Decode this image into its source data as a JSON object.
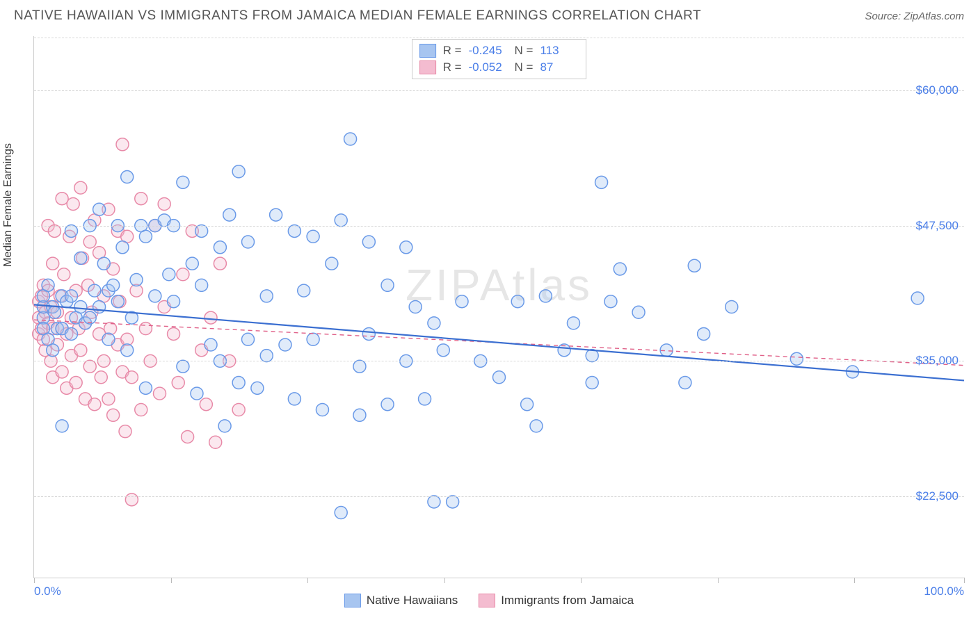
{
  "title": "NATIVE HAWAIIAN VS IMMIGRANTS FROM JAMAICA MEDIAN FEMALE EARNINGS CORRELATION CHART",
  "source_label": "Source: ZipAtlas.com",
  "watermark": "ZIPAtlas",
  "chart": {
    "type": "scatter",
    "ylabel": "Median Female Earnings",
    "xlim": [
      0,
      100
    ],
    "ylim": [
      15000,
      65000
    ],
    "xtick_labels": {
      "0": "0.0%",
      "100": "100.0%"
    },
    "xtick_positions_pct": [
      0,
      14.7,
      29.4,
      44.1,
      58.8,
      73.5,
      88.2,
      100
    ],
    "ytick_values": [
      22500,
      35000,
      47500,
      60000
    ],
    "ytick_labels": [
      "$22,500",
      "$35,000",
      "$47,500",
      "$60,000"
    ],
    "grid_color": "#d8d8d8",
    "background_color": "#ffffff",
    "point_radius": 9,
    "point_stroke_width": 1.5,
    "point_fill_opacity": 0.35,
    "trend_line_width_solid": 2.2,
    "trend_line_width_dashed": 1.4,
    "axis_label_color": "#4a7ee8",
    "axis_label_fontsize": 17,
    "series": [
      {
        "name": "Native Hawaiians",
        "color_stroke": "#6a9ae8",
        "color_fill": "#a7c5f0",
        "trend_color": "#3b6fd1",
        "trend_style": "solid",
        "trend": {
          "x1": 0,
          "y1": 40200,
          "x2": 100,
          "y2": 33200
        },
        "R": "-0.245",
        "N": "113",
        "points": [
          [
            1,
            39000
          ],
          [
            1,
            40000
          ],
          [
            1,
            38000
          ],
          [
            1,
            41000
          ],
          [
            1.5,
            37000
          ],
          [
            1.5,
            42000
          ],
          [
            2,
            40000
          ],
          [
            2,
            36000
          ],
          [
            2.2,
            39500
          ],
          [
            2.5,
            38000
          ],
          [
            3,
            41000
          ],
          [
            3,
            38000
          ],
          [
            3,
            29000
          ],
          [
            3.5,
            40500
          ],
          [
            4,
            47000
          ],
          [
            4,
            41000
          ],
          [
            4,
            37500
          ],
          [
            4.5,
            39000
          ],
          [
            5,
            44500
          ],
          [
            5,
            40000
          ],
          [
            5.5,
            38500
          ],
          [
            6,
            47500
          ],
          [
            6,
            39000
          ],
          [
            6.5,
            41500
          ],
          [
            7,
            49000
          ],
          [
            7,
            40000
          ],
          [
            7.5,
            44000
          ],
          [
            8,
            41500
          ],
          [
            8,
            37000
          ],
          [
            8.5,
            42000
          ],
          [
            9,
            47500
          ],
          [
            9,
            40500
          ],
          [
            9.5,
            45500
          ],
          [
            10,
            52000
          ],
          [
            10,
            36000
          ],
          [
            10.5,
            39000
          ],
          [
            11,
            42500
          ],
          [
            11.5,
            47500
          ],
          [
            12,
            46500
          ],
          [
            12,
            32500
          ],
          [
            13,
            41000
          ],
          [
            13,
            47500
          ],
          [
            14,
            48000
          ],
          [
            14.5,
            43000
          ],
          [
            15,
            40500
          ],
          [
            15,
            47500
          ],
          [
            16,
            51500
          ],
          [
            16,
            34500
          ],
          [
            17,
            44000
          ],
          [
            17.5,
            32000
          ],
          [
            18,
            42000
          ],
          [
            18,
            47000
          ],
          [
            19,
            36500
          ],
          [
            20,
            45500
          ],
          [
            20,
            35000
          ],
          [
            20.5,
            29000
          ],
          [
            21,
            48500
          ],
          [
            22,
            52500
          ],
          [
            22,
            33000
          ],
          [
            23,
            46000
          ],
          [
            23,
            37000
          ],
          [
            24,
            32500
          ],
          [
            25,
            41000
          ],
          [
            25,
            35500
          ],
          [
            26,
            48500
          ],
          [
            27,
            36500
          ],
          [
            28,
            47000
          ],
          [
            28,
            31500
          ],
          [
            29,
            41500
          ],
          [
            30,
            46500
          ],
          [
            30,
            37000
          ],
          [
            31,
            30500
          ],
          [
            32,
            44000
          ],
          [
            33,
            48000
          ],
          [
            33,
            21000
          ],
          [
            34,
            55500
          ],
          [
            35,
            34500
          ],
          [
            35,
            30000
          ],
          [
            36,
            37500
          ],
          [
            36,
            46000
          ],
          [
            38,
            42000
          ],
          [
            38,
            31000
          ],
          [
            40,
            35000
          ],
          [
            40,
            45500
          ],
          [
            41,
            40000
          ],
          [
            42,
            31500
          ],
          [
            43,
            38500
          ],
          [
            43,
            22000
          ],
          [
            44,
            36000
          ],
          [
            45,
            22000
          ],
          [
            46,
            40500
          ],
          [
            48,
            35000
          ],
          [
            50,
            33500
          ],
          [
            52,
            40500
          ],
          [
            53,
            31000
          ],
          [
            54,
            29000
          ],
          [
            55,
            41000
          ],
          [
            57,
            36000
          ],
          [
            58,
            38500
          ],
          [
            60,
            35500
          ],
          [
            60,
            33000
          ],
          [
            61,
            51500
          ],
          [
            62,
            40500
          ],
          [
            63,
            43500
          ],
          [
            65,
            39500
          ],
          [
            68,
            36000
          ],
          [
            70,
            33000
          ],
          [
            71,
            43800
          ],
          [
            72,
            37500
          ],
          [
            75,
            40000
          ],
          [
            82,
            35200
          ],
          [
            88,
            34000
          ],
          [
            95,
            40800
          ]
        ]
      },
      {
        "name": "Immigrants from Jamaica",
        "color_stroke": "#e88aa8",
        "color_fill": "#f4bcd0",
        "trend_color": "#e06088",
        "trend_style": "dashed",
        "trend": {
          "x1": 0,
          "y1": 38800,
          "x2": 100,
          "y2": 34600
        },
        "R": "-0.052",
        "N": "87",
        "points": [
          [
            0.5,
            39000
          ],
          [
            0.5,
            40500
          ],
          [
            0.5,
            37500
          ],
          [
            0.8,
            41000
          ],
          [
            0.8,
            38000
          ],
          [
            1,
            42000
          ],
          [
            1,
            37000
          ],
          [
            1,
            40000
          ],
          [
            1.2,
            39500
          ],
          [
            1.2,
            36000
          ],
          [
            1.5,
            47500
          ],
          [
            1.5,
            38500
          ],
          [
            1.5,
            41500
          ],
          [
            1.8,
            35000
          ],
          [
            1.8,
            40000
          ],
          [
            2,
            44000
          ],
          [
            2,
            38000
          ],
          [
            2,
            33500
          ],
          [
            2.2,
            47000
          ],
          [
            2.5,
            39500
          ],
          [
            2.5,
            36500
          ],
          [
            2.8,
            41000
          ],
          [
            3,
            50000
          ],
          [
            3,
            38000
          ],
          [
            3,
            34000
          ],
          [
            3.2,
            43000
          ],
          [
            3.5,
            37500
          ],
          [
            3.5,
            32500
          ],
          [
            3.8,
            46500
          ],
          [
            4,
            39000
          ],
          [
            4,
            35500
          ],
          [
            4.2,
            49500
          ],
          [
            4.5,
            41500
          ],
          [
            4.5,
            33000
          ],
          [
            4.8,
            38000
          ],
          [
            5,
            51000
          ],
          [
            5,
            36000
          ],
          [
            5.2,
            44500
          ],
          [
            5.5,
            38500
          ],
          [
            5.5,
            31500
          ],
          [
            5.8,
            42000
          ],
          [
            6,
            46000
          ],
          [
            6,
            34500
          ],
          [
            6.2,
            39500
          ],
          [
            6.5,
            48000
          ],
          [
            6.5,
            31000
          ],
          [
            7,
            37500
          ],
          [
            7,
            45000
          ],
          [
            7.2,
            33500
          ],
          [
            7.5,
            41000
          ],
          [
            7.5,
            35000
          ],
          [
            8,
            49000
          ],
          [
            8,
            31500
          ],
          [
            8.2,
            38000
          ],
          [
            8.5,
            43500
          ],
          [
            8.5,
            30000
          ],
          [
            9,
            36500
          ],
          [
            9,
            47000
          ],
          [
            9.2,
            40500
          ],
          [
            9.5,
            34000
          ],
          [
            9.5,
            55000
          ],
          [
            9.8,
            28500
          ],
          [
            10,
            37000
          ],
          [
            10,
            46500
          ],
          [
            10.5,
            33500
          ],
          [
            10.5,
            22200
          ],
          [
            11,
            41500
          ],
          [
            11.5,
            50000
          ],
          [
            11.5,
            30500
          ],
          [
            12,
            38000
          ],
          [
            12.5,
            35000
          ],
          [
            13,
            47500
          ],
          [
            13.5,
            32000
          ],
          [
            14,
            40000
          ],
          [
            14,
            49500
          ],
          [
            15,
            37500
          ],
          [
            15.5,
            33000
          ],
          [
            16,
            43000
          ],
          [
            16.5,
            28000
          ],
          [
            17,
            47000
          ],
          [
            18,
            36000
          ],
          [
            18.5,
            31000
          ],
          [
            19,
            39000
          ],
          [
            19.5,
            27500
          ],
          [
            20,
            44000
          ],
          [
            21,
            35000
          ],
          [
            22,
            30500
          ]
        ]
      }
    ]
  },
  "legend_bottom": [
    {
      "label": "Native Hawaiians",
      "swatch_fill": "#a7c5f0",
      "swatch_stroke": "#6a9ae8"
    },
    {
      "label": "Immigrants from Jamaica",
      "swatch_fill": "#f4bcd0",
      "swatch_stroke": "#e88aa8"
    }
  ]
}
